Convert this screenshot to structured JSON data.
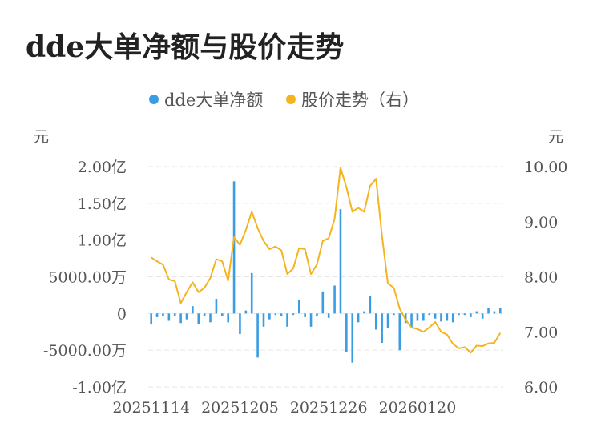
{
  "chart_data": {
    "type": "bar+line",
    "title": "dde大单净额与股价走势",
    "left_axis_unit": "元",
    "right_axis_unit": "元",
    "left_ticks": [
      "2.00亿",
      "1.50亿",
      "1.00亿",
      "5000.00万",
      "0",
      "-5000.00万",
      "-1.00亿"
    ],
    "right_ticks": [
      "10.00",
      "9.00",
      "8.00",
      "7.00",
      "6.00"
    ],
    "left_ylim": [
      -100000000,
      200000000
    ],
    "right_ylim": [
      6.0,
      10.0
    ],
    "x_tick_labels": [
      {
        "label": "20251114",
        "index": 0
      },
      {
        "label": "20251205",
        "index": 15
      },
      {
        "label": "20251226",
        "index": 30
      },
      {
        "label": "20260120",
        "index": 45
      }
    ],
    "legend_position": "top-center",
    "grid": true,
    "series": [
      {
        "name": "dde大单净额",
        "type": "bar",
        "axis": "left",
        "color": "#3a9de3",
        "values": [
          -15000000,
          -5000000,
          -3000000,
          -10000000,
          -3000000,
          -13000000,
          -8000000,
          10000000,
          -14000000,
          -4000000,
          -12000000,
          20000000,
          -3000000,
          -12000000,
          180000000,
          -28000000,
          4000000,
          55000000,
          -60000000,
          -18000000,
          -8000000,
          -2000000,
          -4000000,
          -18000000,
          -2000000,
          19000000,
          -5000000,
          -18000000,
          -3000000,
          30000000,
          -6000000,
          38000000,
          142000000,
          -53000000,
          -67000000,
          -12000000,
          3000000,
          24000000,
          -22000000,
          -40000000,
          -20000000,
          -2000000,
          -50000000,
          -13000000,
          -20000000,
          -10000000,
          -10000000,
          -2000000,
          -7000000,
          -11000000,
          -10000000,
          -12000000,
          -2000000,
          -2000000,
          -5000000,
          3000000,
          -7000000,
          7000000,
          3000000,
          8000000
        ]
      },
      {
        "name": "股价走势（右）",
        "type": "line",
        "axis": "right",
        "color": "#f5b41f",
        "values": [
          8.35,
          8.28,
          8.22,
          7.95,
          7.92,
          7.52,
          7.72,
          7.9,
          7.72,
          7.8,
          7.98,
          8.32,
          8.28,
          7.93,
          8.72,
          8.58,
          8.85,
          9.18,
          8.88,
          8.65,
          8.5,
          8.55,
          8.48,
          8.05,
          8.15,
          8.52,
          8.5,
          8.05,
          8.22,
          8.65,
          8.7,
          9.05,
          9.98,
          9.62,
          9.18,
          9.25,
          9.18,
          9.65,
          9.78,
          8.75,
          7.88,
          7.8,
          7.42,
          7.22,
          7.08,
          7.05,
          7.0,
          7.08,
          7.18,
          7.0,
          6.95,
          6.78,
          6.7,
          6.72,
          6.62,
          6.75,
          6.74,
          6.79,
          6.8,
          6.98
        ]
      }
    ]
  }
}
